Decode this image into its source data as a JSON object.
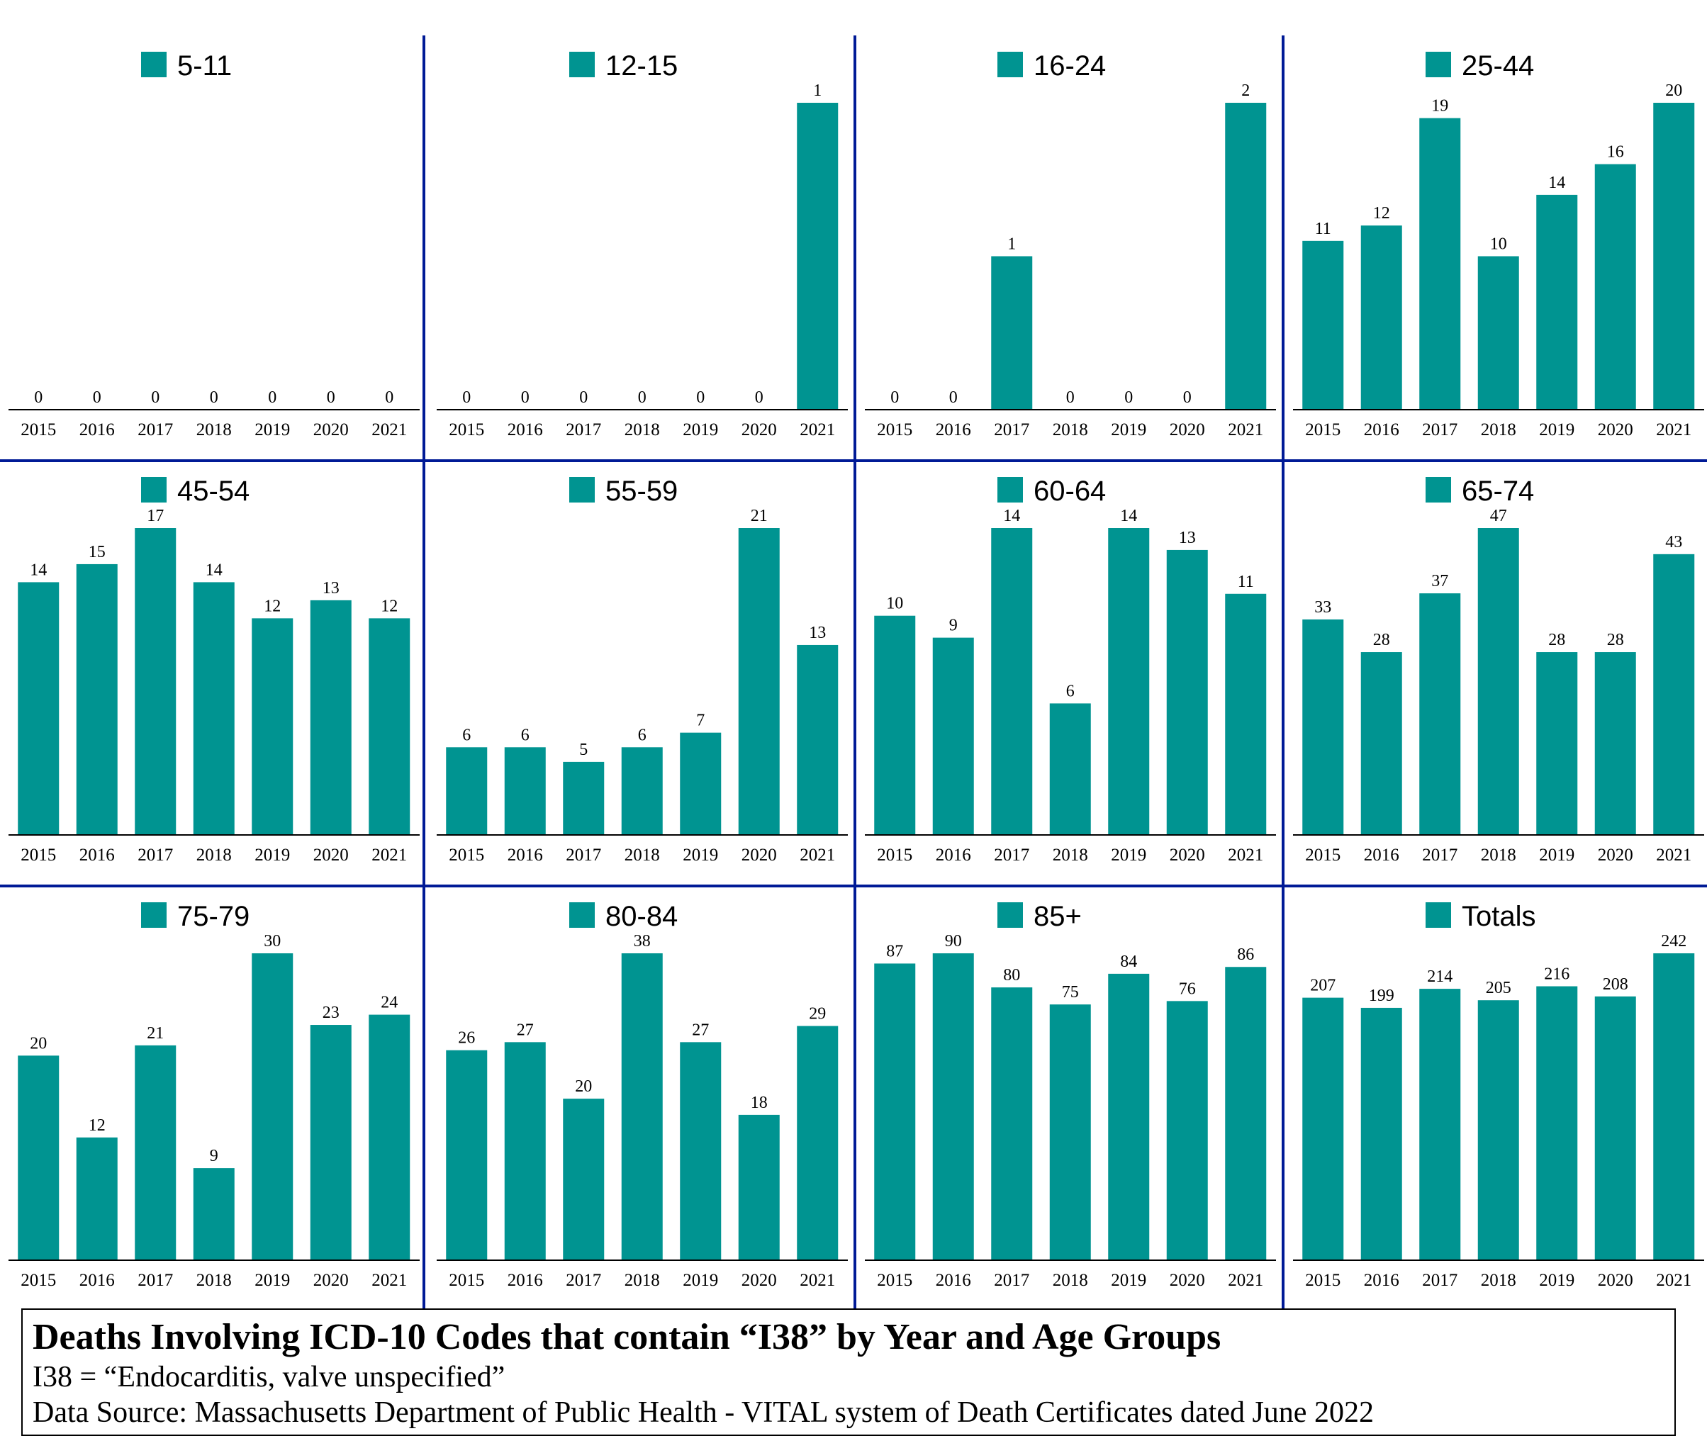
{
  "colors": {
    "bar": "#009491",
    "divider": "#001a96",
    "axis": "#000000"
  },
  "caption": {
    "title": "Deaths Involving ICD-10 Codes that contain “I38” by Year and Age Groups",
    "line1": "I38 = “Endocarditis, valve unspecified”",
    "line2": "Data Source:  Massachusetts Department of Public Health - VITAL system of Death Certificates dated June 2022"
  },
  "chart_data": [
    {
      "type": "bar",
      "name": "5-11",
      "categories": [
        "2015",
        "2016",
        "2017",
        "2018",
        "2019",
        "2020",
        "2021"
      ],
      "values": [
        0,
        0,
        0,
        0,
        0,
        0,
        0
      ],
      "ylim": [
        0,
        1
      ]
    },
    {
      "type": "bar",
      "name": "12-15",
      "categories": [
        "2015",
        "2016",
        "2017",
        "2018",
        "2019",
        "2020",
        "2021"
      ],
      "values": [
        0,
        0,
        0,
        0,
        0,
        0,
        1
      ],
      "ylim": [
        0,
        1
      ]
    },
    {
      "type": "bar",
      "name": "16-24",
      "categories": [
        "2015",
        "2016",
        "2017",
        "2018",
        "2019",
        "2020",
        "2021"
      ],
      "values": [
        0,
        0,
        1,
        0,
        0,
        0,
        2
      ],
      "ylim": [
        0,
        2
      ]
    },
    {
      "type": "bar",
      "name": "25-44",
      "categories": [
        "2015",
        "2016",
        "2017",
        "2018",
        "2019",
        "2020",
        "2021"
      ],
      "values": [
        11,
        12,
        19,
        10,
        14,
        16,
        20
      ],
      "ylim": [
        0,
        20
      ]
    },
    {
      "type": "bar",
      "name": "45-54",
      "categories": [
        "2015",
        "2016",
        "2017",
        "2018",
        "2019",
        "2020",
        "2021"
      ],
      "values": [
        14,
        15,
        17,
        14,
        12,
        13,
        12
      ],
      "ylim": [
        0,
        17
      ]
    },
    {
      "type": "bar",
      "name": "55-59",
      "categories": [
        "2015",
        "2016",
        "2017",
        "2018",
        "2019",
        "2020",
        "2021"
      ],
      "values": [
        6,
        6,
        5,
        6,
        7,
        21,
        13
      ],
      "ylim": [
        0,
        21
      ]
    },
    {
      "type": "bar",
      "name": "60-64",
      "categories": [
        "2015",
        "2016",
        "2017",
        "2018",
        "2019",
        "2020",
        "2021"
      ],
      "values": [
        10,
        9,
        14,
        6,
        14,
        13,
        11
      ],
      "ylim": [
        0,
        14
      ]
    },
    {
      "type": "bar",
      "name": "65-74",
      "categories": [
        "2015",
        "2016",
        "2017",
        "2018",
        "2019",
        "2020",
        "2021"
      ],
      "values": [
        33,
        28,
        37,
        47,
        28,
        28,
        43
      ],
      "ylim": [
        0,
        47
      ]
    },
    {
      "type": "bar",
      "name": "75-79",
      "categories": [
        "2015",
        "2016",
        "2017",
        "2018",
        "2019",
        "2020",
        "2021"
      ],
      "values": [
        20,
        12,
        21,
        9,
        30,
        23,
        24
      ],
      "ylim": [
        0,
        30
      ]
    },
    {
      "type": "bar",
      "name": "80-84",
      "categories": [
        "2015",
        "2016",
        "2017",
        "2018",
        "2019",
        "2020",
        "2021"
      ],
      "values": [
        26,
        27,
        20,
        38,
        27,
        18,
        29
      ],
      "ylim": [
        0,
        38
      ]
    },
    {
      "type": "bar",
      "name": "85+",
      "categories": [
        "2015",
        "2016",
        "2017",
        "2018",
        "2019",
        "2020",
        "2021"
      ],
      "values": [
        87,
        90,
        80,
        75,
        84,
        76,
        86
      ],
      "ylim": [
        0,
        90
      ]
    },
    {
      "type": "bar",
      "name": "Totals",
      "categories": [
        "2015",
        "2016",
        "2017",
        "2018",
        "2019",
        "2020",
        "2021"
      ],
      "values": [
        207,
        199,
        214,
        205,
        216,
        208,
        242
      ],
      "ylim": [
        0,
        242
      ]
    }
  ]
}
